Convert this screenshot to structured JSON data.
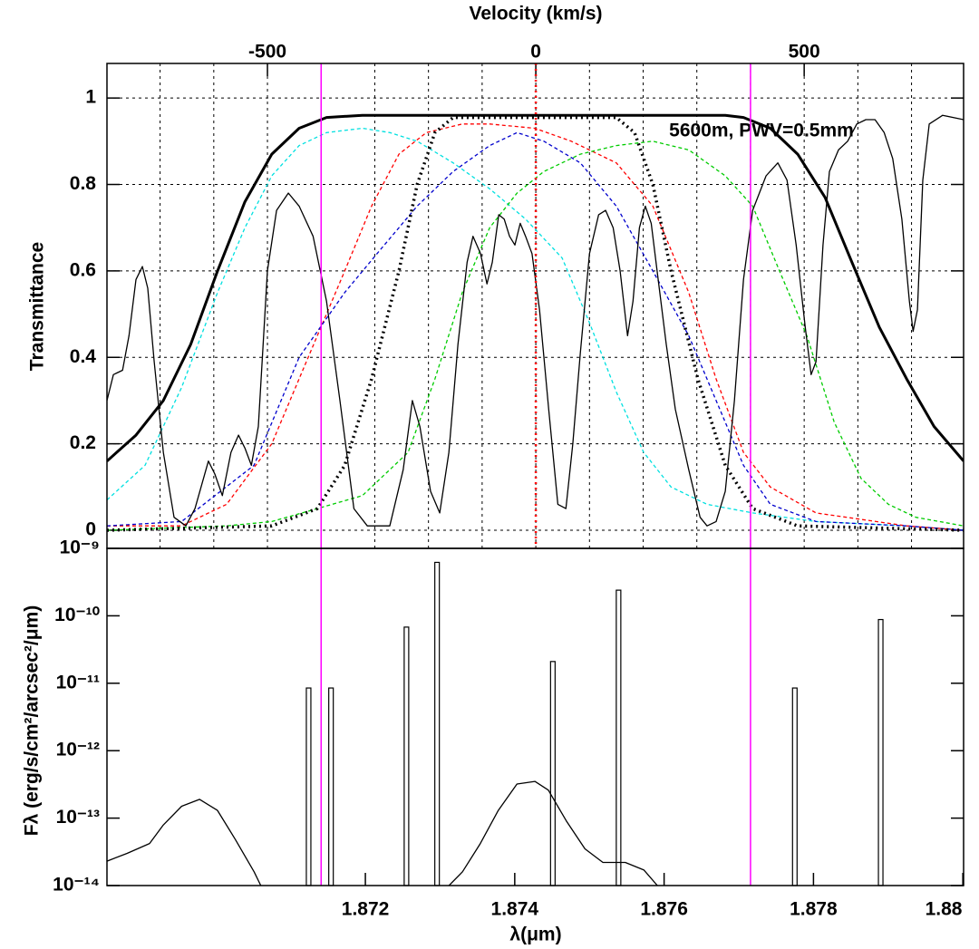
{
  "chart_data": [
    {
      "type": "line",
      "xlabel": "Velocity (km/s)",
      "ylabel": "Transmittance",
      "annotation": "5600m, PWV=0.5mm",
      "xlim": [
        -799,
        797
      ],
      "xticks": [
        -500,
        0,
        500
      ],
      "xgrid": [
        -700,
        -600,
        -500,
        -400,
        -300,
        -200,
        -100,
        0,
        100,
        200,
        300,
        400,
        500,
        600,
        700
      ],
      "ylim": [
        -0.042,
        1.08
      ],
      "yticks": [
        0,
        0.2,
        0.4,
        0.6,
        0.8,
        1
      ],
      "grid": true,
      "vlines": [
        {
          "x": [
            -400,
            400
          ],
          "color": "#ff00ff",
          "style": "solid"
        },
        {
          "x": [
            0
          ],
          "color": "#ff0000",
          "style": "dotted"
        }
      ],
      "series": [
        {
          "color": "#00e0e0",
          "style": "dashed",
          "x": [
            -799,
            -728,
            -660,
            -593,
            -542,
            -492,
            -441,
            -390,
            -323,
            -272,
            -221,
            -154,
            -86,
            -19,
            49,
            100,
            150,
            201,
            252,
            319,
            404,
            522,
            691,
            797
          ],
          "values": [
            0.07,
            0.15,
            0.33,
            0.55,
            0.7,
            0.82,
            0.89,
            0.92,
            0.93,
            0.92,
            0.9,
            0.85,
            0.79,
            0.72,
            0.63,
            0.48,
            0.32,
            0.18,
            0.1,
            0.06,
            0.04,
            0.02,
            0.01,
            0.0
          ]
        },
        {
          "color": "#ff0000",
          "style": "dashed",
          "x": [
            -799,
            -660,
            -576,
            -492,
            -424,
            -356,
            -306,
            -255,
            -204,
            -137,
            -86,
            -2,
            66,
            150,
            218,
            285,
            336,
            387,
            437,
            522,
            691,
            797
          ],
          "values": [
            0.01,
            0.01,
            0.06,
            0.2,
            0.4,
            0.6,
            0.75,
            0.87,
            0.92,
            0.94,
            0.94,
            0.93,
            0.9,
            0.85,
            0.75,
            0.55,
            0.35,
            0.18,
            0.1,
            0.04,
            0.01,
            0.0
          ]
        },
        {
          "color": "#0000cc",
          "style": "dashed",
          "x": [
            -799,
            -660,
            -525,
            -441,
            -356,
            -289,
            -221,
            -154,
            -86,
            -35,
            15,
            83,
            150,
            218,
            285,
            336,
            387,
            437,
            522,
            691,
            797
          ],
          "values": [
            0.01,
            0.02,
            0.15,
            0.4,
            0.55,
            0.65,
            0.75,
            0.83,
            0.89,
            0.92,
            0.9,
            0.85,
            0.75,
            0.6,
            0.45,
            0.3,
            0.15,
            0.06,
            0.02,
            0.01,
            0.0
          ]
        },
        {
          "color": "#00cc00",
          "style": "dashed",
          "x": [
            -799,
            -576,
            -492,
            -407,
            -323,
            -238,
            -188,
            -137,
            -86,
            -35,
            15,
            83,
            150,
            218,
            285,
            353,
            404,
            454,
            505,
            556,
            606,
            657,
            708,
            797
          ],
          "values": [
            0.0,
            0.01,
            0.02,
            0.05,
            0.08,
            0.18,
            0.35,
            0.55,
            0.7,
            0.78,
            0.83,
            0.87,
            0.89,
            0.9,
            0.88,
            0.82,
            0.75,
            0.6,
            0.45,
            0.25,
            0.12,
            0.06,
            0.03,
            0.01
          ]
        },
        {
          "color": "#000000",
          "style": "dotted",
          "x": [
            -799,
            -492,
            -407,
            -356,
            -306,
            -255,
            -221,
            -188,
            -154,
            150,
            184,
            218,
            252,
            302,
            353,
            404,
            488,
            797
          ],
          "values": [
            0.0,
            0.01,
            0.05,
            0.15,
            0.35,
            0.6,
            0.8,
            0.92,
            0.955,
            0.955,
            0.92,
            0.8,
            0.6,
            0.35,
            0.15,
            0.05,
            0.01,
            0.0
          ]
        },
        {
          "color": "#000000",
          "style": "thick",
          "x": [
            -799,
            -745,
            -694,
            -643,
            -593,
            -542,
            -492,
            -441,
            -390,
            -323,
            15,
            353,
            387,
            437,
            488,
            539,
            589,
            640,
            691,
            742,
            797
          ],
          "values": [
            0.16,
            0.22,
            0.3,
            0.43,
            0.6,
            0.76,
            0.87,
            0.93,
            0.955,
            0.96,
            0.96,
            0.96,
            0.955,
            0.93,
            0.87,
            0.77,
            0.62,
            0.47,
            0.35,
            0.24,
            0.16
          ]
        },
        {
          "color": "#000000",
          "style": "thin",
          "x": [
            -799,
            -787,
            -770,
            -758,
            -745,
            -733,
            -723,
            -711,
            -694,
            -674,
            -652,
            -635,
            -610,
            -598,
            -584,
            -568,
            -554,
            -542,
            -530,
            -517,
            -500,
            -483,
            -461,
            -441,
            -415,
            -390,
            -365,
            -339,
            -314,
            -272,
            -247,
            -230,
            -216,
            -196,
            -179,
            -162,
            -145,
            -128,
            -117,
            -103,
            -91,
            -81,
            -69,
            -59,
            -49,
            -39,
            -29,
            -19,
            -7,
            7,
            24,
            41,
            56,
            69,
            83,
            100,
            117,
            130,
            144,
            157,
            171,
            181,
            193,
            204,
            215,
            226,
            243,
            260,
            285,
            306,
            319,
            336,
            353,
            370,
            387,
            404,
            429,
            451,
            468,
            485,
            502,
            513,
            522,
            535,
            547,
            564,
            581,
            598,
            615,
            632,
            649,
            665,
            682,
            696,
            703,
            711,
            721,
            733,
            758,
            797
          ],
          "values": [
            0.3,
            0.36,
            0.37,
            0.45,
            0.58,
            0.61,
            0.56,
            0.39,
            0.18,
            0.03,
            0.01,
            0.05,
            0.16,
            0.13,
            0.08,
            0.18,
            0.22,
            0.19,
            0.15,
            0.24,
            0.6,
            0.74,
            0.78,
            0.75,
            0.68,
            0.53,
            0.3,
            0.05,
            0.01,
            0.01,
            0.14,
            0.3,
            0.24,
            0.09,
            0.04,
            0.18,
            0.43,
            0.62,
            0.68,
            0.64,
            0.57,
            0.62,
            0.73,
            0.72,
            0.68,
            0.66,
            0.71,
            0.68,
            0.64,
            0.51,
            0.28,
            0.06,
            0.05,
            0.2,
            0.41,
            0.64,
            0.73,
            0.74,
            0.7,
            0.6,
            0.45,
            0.53,
            0.7,
            0.75,
            0.71,
            0.6,
            0.43,
            0.28,
            0.14,
            0.03,
            0.01,
            0.02,
            0.09,
            0.3,
            0.58,
            0.74,
            0.82,
            0.85,
            0.81,
            0.66,
            0.47,
            0.36,
            0.39,
            0.66,
            0.83,
            0.88,
            0.9,
            0.94,
            0.95,
            0.95,
            0.92,
            0.86,
            0.72,
            0.53,
            0.46,
            0.51,
            0.81,
            0.94,
            0.96,
            0.95
          ]
        }
      ]
    },
    {
      "type": "bar",
      "xlabel": "λ(μm)",
      "ylabel": "Fλ (erg/s/cm²/arcsec²/μm)",
      "xlim": [
        1.86854,
        1.88001
      ],
      "xticks": [
        1.872,
        1.874,
        1.876,
        1.878,
        1.88
      ],
      "log_y": true,
      "ylim": [
        1e-14,
        1e-09
      ],
      "yticks": [
        {
          "value": 1e-14,
          "label": "10⁻¹⁴"
        },
        {
          "value": 1e-13,
          "label": "10⁻¹³"
        },
        {
          "value": 1e-12,
          "label": "10⁻¹²"
        },
        {
          "value": 1e-11,
          "label": "10⁻¹¹"
        },
        {
          "value": 1e-10,
          "label": "10⁻¹⁰"
        },
        {
          "value": 1e-09,
          "label": "10⁻⁹"
        }
      ],
      "bars": {
        "color": "#000000",
        "x": [
          1.87124,
          1.87154,
          1.87255,
          1.87296,
          1.87451,
          1.87539,
          1.87775,
          1.8789
        ],
        "values": [
          8.5e-12,
          8.5e-12,
          6.8e-11,
          6.2e-10,
          2.1e-11,
          2.4e-10,
          8.5e-12,
          8.8e-11
        ]
      },
      "series": [
        {
          "color": "#000000",
          "style": "thin",
          "x": [
            1.86854,
            1.86881,
            1.86911,
            1.86929,
            1.86954,
            1.86978,
            1.87002,
            1.87026,
            1.87051,
            1.8706,
            1.8715,
            1.87312,
            1.8733,
            1.87354,
            1.87378,
            1.87403,
            1.87427,
            1.87445,
            1.87469,
            1.87494,
            1.87518,
            1.87548,
            1.87573,
            1.87591
          ],
          "values": [
            2.3e-14,
            3e-14,
            4.2e-14,
            7.8e-14,
            1.5e-13,
            1.9e-13,
            1.3e-13,
            4.8e-14,
            1.6e-14,
            1e-14,
            null,
            1e-14,
            1.6e-14,
            4.2e-14,
            1.3e-13,
            3.2e-13,
            3.5e-13,
            2.6e-13,
            9.1e-14,
            3.5e-14,
            2.2e-14,
            2.2e-14,
            1.7e-14,
            1e-14
          ]
        }
      ]
    }
  ]
}
